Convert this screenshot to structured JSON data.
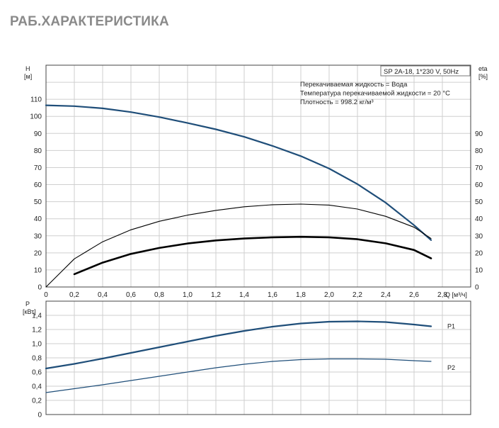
{
  "page_title": "РАБ.ХАРАКТЕРИСТИКА",
  "chart_data": [
    {
      "type": "line",
      "info_box": {
        "model": "SP 2A-18, 1*230 V, 50Hz",
        "lines": [
          "Перекачиваемая жидкость = Вода",
          "Температура перекачиваемой жидкости = 20 °C",
          "Плотность = 998.2 кг/м³"
        ]
      },
      "ylabel_left": [
        "H",
        "[м]"
      ],
      "ylabel_right": [
        "eta",
        "[%]"
      ],
      "xlabel": "Q [м³/ч]",
      "xlim": [
        0,
        3.0
      ],
      "ylim_left": [
        0,
        130
      ],
      "ylim_right": [
        0,
        130
      ],
      "x_ticks": [
        "0",
        "0,2",
        "0,4",
        "0,6",
        "0,8",
        "1,0",
        "1,2",
        "1,4",
        "1,6",
        "1,8",
        "2,0",
        "2,2",
        "2,4",
        "2,6",
        "2,8"
      ],
      "y_ticks_left": [
        "0",
        "10",
        "20",
        "30",
        "40",
        "50",
        "60",
        "70",
        "80",
        "90",
        "100",
        "110"
      ],
      "y_ticks_right": [
        "0",
        "10",
        "20",
        "30",
        "40",
        "50",
        "60",
        "70",
        "80",
        "90"
      ],
      "grid": true,
      "series": [
        {
          "key": "head",
          "color": "#1f4e79",
          "x": [
            0,
            0.2,
            0.4,
            0.6,
            0.8,
            1.0,
            1.2,
            1.4,
            1.6,
            1.8,
            2.0,
            2.2,
            2.4,
            2.6,
            2.72
          ],
          "y": [
            106.5,
            106,
            104.7,
            102.5,
            99.6,
            96.1,
            92.4,
            88,
            82.7,
            76.7,
            69.4,
            60.3,
            49.4,
            36.2,
            27.5
          ]
        },
        {
          "key": "efficiency_thin",
          "color": "#000000",
          "x": [
            0,
            0.2,
            0.4,
            0.6,
            0.8,
            1.0,
            1.2,
            1.4,
            1.6,
            1.8,
            2.0,
            2.2,
            2.4,
            2.6,
            2.72
          ],
          "y": [
            0,
            16.5,
            26.5,
            33.5,
            38.5,
            42.1,
            44.9,
            47,
            48.2,
            48.6,
            48,
            45.7,
            41.4,
            35,
            28.4
          ]
        },
        {
          "key": "efficiency_thick",
          "color": "#000000",
          "x": [
            0.2,
            0.4,
            0.6,
            0.8,
            1.0,
            1.2,
            1.4,
            1.6,
            1.8,
            2.0,
            2.2,
            2.4,
            2.6,
            2.72
          ],
          "y": [
            7.5,
            14.3,
            19.4,
            22.9,
            25.5,
            27.3,
            28.4,
            29.1,
            29.4,
            29.1,
            28,
            25.6,
            21.7,
            16.8
          ]
        }
      ]
    },
    {
      "type": "line",
      "ylabel": [
        "P",
        "[кВт]"
      ],
      "xlim": [
        0,
        3.0
      ],
      "ylim": [
        0,
        1.6
      ],
      "y_ticks": [
        "0",
        "0,2",
        "0,4",
        "0,6",
        "0,8",
        "1,0",
        "1,2",
        "1,4"
      ],
      "grid": true,
      "series": [
        {
          "name": "P1",
          "color": "#1f4e79",
          "x": [
            0,
            0.2,
            0.4,
            0.6,
            0.8,
            1.0,
            1.2,
            1.4,
            1.6,
            1.8,
            2.0,
            2.2,
            2.4,
            2.6,
            2.72
          ],
          "y": [
            0.65,
            0.715,
            0.79,
            0.87,
            0.95,
            1.03,
            1.11,
            1.18,
            1.24,
            1.285,
            1.31,
            1.315,
            1.305,
            1.27,
            1.245
          ]
        },
        {
          "name": "P2",
          "color": "#1f4e79",
          "x": [
            0,
            0.2,
            0.4,
            0.6,
            0.8,
            1.0,
            1.2,
            1.4,
            1.6,
            1.8,
            2.0,
            2.2,
            2.4,
            2.6,
            2.72
          ],
          "y": [
            0.31,
            0.365,
            0.42,
            0.48,
            0.54,
            0.6,
            0.66,
            0.71,
            0.75,
            0.775,
            0.785,
            0.785,
            0.78,
            0.76,
            0.75
          ]
        }
      ]
    }
  ]
}
